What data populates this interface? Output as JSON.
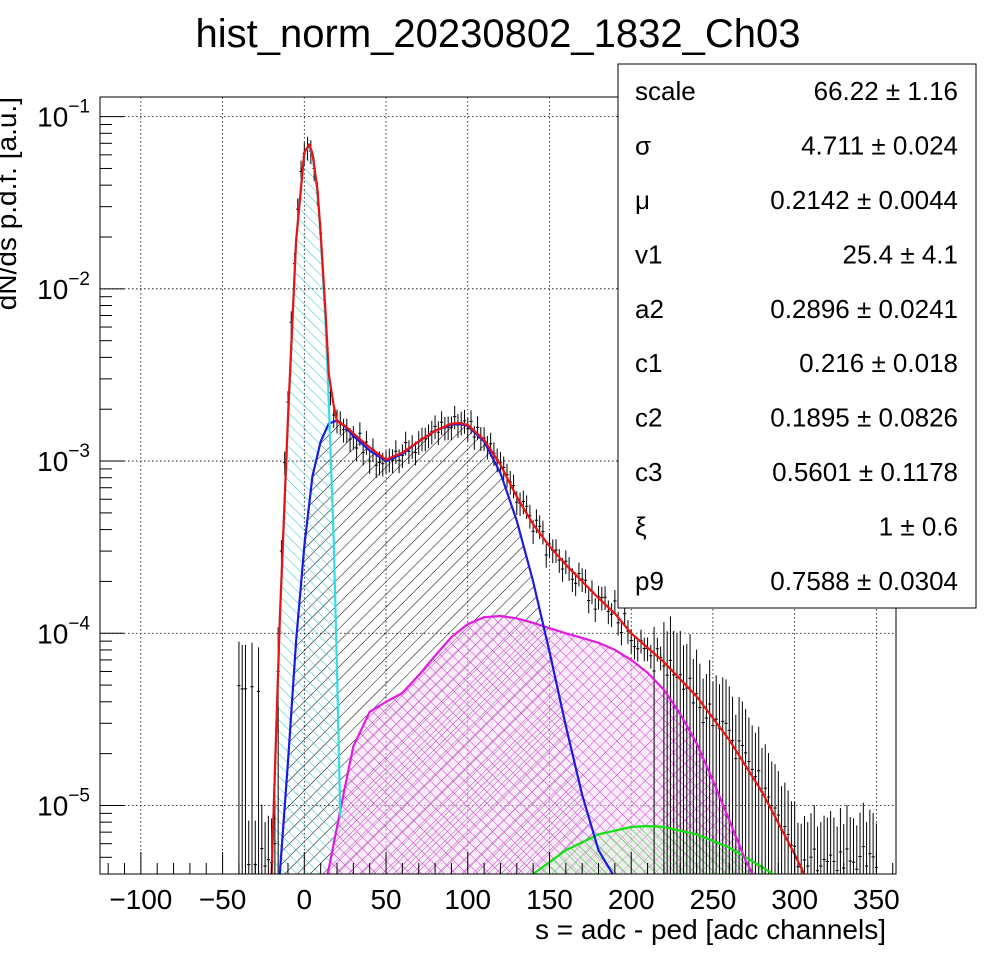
{
  "chart_data": {
    "type": "line",
    "title": "hist_norm_20230802_1832_Ch03",
    "xlabel": "s = adc - ped [adc channels]",
    "ylabel": "dN/ds p.d.f. [a.u.]",
    "xlim": [
      -125,
      362
    ],
    "ylim": [
      4e-06,
      0.13
    ],
    "yscale": "log",
    "grid": true,
    "x_ticks": [
      -100,
      -50,
      0,
      50,
      100,
      150,
      200,
      250,
      300,
      350
    ],
    "x_tick_labels": [
      "−100",
      "−50",
      "0",
      "50",
      "100",
      "150",
      "200",
      "250",
      "300",
      "350"
    ],
    "y_ticks": [
      {
        "value": 0.1,
        "base": "10",
        "exp": "−1"
      },
      {
        "value": 0.01,
        "base": "10",
        "exp": "−2"
      },
      {
        "value": 0.001,
        "base": "10",
        "exp": "−3"
      },
      {
        "value": 0.0001,
        "base": "10",
        "exp": "−4"
      },
      {
        "value": 1e-05,
        "base": "10",
        "exp": "−5"
      }
    ],
    "series": [
      {
        "color": "#ee1111",
        "x": [
          -20,
          -15,
          -10,
          -5,
          0,
          3,
          5,
          8,
          10,
          13,
          15,
          18,
          20,
          25,
          30,
          40,
          50,
          60,
          70,
          80,
          90,
          95,
          100,
          110,
          120,
          130,
          140,
          150,
          160,
          170,
          180,
          190,
          200,
          220,
          240,
          260,
          280,
          300,
          310
        ],
        "y": [
          4e-06,
          0.00012,
          0.0018,
          0.019,
          0.062,
          0.069,
          0.061,
          0.038,
          0.021,
          0.0072,
          0.0032,
          0.0021,
          0.0017,
          0.0016,
          0.00145,
          0.0012,
          0.00102,
          0.00112,
          0.0013,
          0.0015,
          0.00165,
          0.00166,
          0.00162,
          0.00133,
          0.00095,
          0.00062,
          0.00043,
          0.00032,
          0.00025,
          0.0002,
          0.00016,
          0.00013,
          0.0001,
          6.8e-05,
          4.3e-05,
          2.4e-05,
          1.2e-05,
          5.2e-06,
          3.3e-06
        ]
      },
      {
        "color": "#1a1ae6",
        "x": [
          -15,
          -10,
          -5,
          0,
          5,
          10,
          15,
          20,
          25,
          30,
          40,
          50,
          60,
          70,
          80,
          90,
          95,
          100,
          110,
          120,
          130,
          140,
          150,
          160,
          170,
          180,
          190,
          200
        ],
        "y": [
          4e-06,
          1.8e-05,
          9e-05,
          0.00032,
          0.00082,
          0.0013,
          0.00165,
          0.00172,
          0.00158,
          0.0014,
          0.00115,
          0.001,
          0.0011,
          0.0013,
          0.0015,
          0.00163,
          0.00164,
          0.0016,
          0.0013,
          0.00085,
          0.00045,
          0.0002,
          7.8e-05,
          2.9e-05,
          1.15e-05,
          5.5e-06,
          3.8e-06,
          3e-06
        ]
      },
      {
        "color": "#33dde8",
        "x": [
          -20,
          -15,
          -10,
          -5,
          0,
          3,
          5,
          8,
          10,
          13,
          15,
          18,
          20,
          22
        ],
        "y": [
          4e-06,
          0.00012,
          0.0017,
          0.019,
          0.062,
          0.067,
          0.061,
          0.037,
          0.02,
          0.0063,
          0.0022,
          0.00035,
          6.2e-05,
          8.5e-06
        ]
      },
      {
        "color": "#e01ce0",
        "x": [
          10,
          15,
          20,
          25,
          30,
          40,
          50,
          60,
          70,
          80,
          90,
          100,
          110,
          120,
          130,
          140,
          150,
          160,
          170,
          180,
          190,
          200,
          210,
          220,
          230,
          240,
          250,
          260,
          270,
          280
        ],
        "y": [
          2.8e-06,
          4.3e-06,
          7.5e-06,
          1.3e-05,
          2.2e-05,
          3.5e-05,
          4e-05,
          4.5e-05,
          5.7e-05,
          7.4e-05,
          9.5e-05,
          0.000113,
          0.000124,
          0.000126,
          0.000122,
          0.000115,
          0.000107,
          0.0001,
          9.4e-05,
          8.8e-05,
          8e-05,
          7e-05,
          5.9e-05,
          4.7e-05,
          3.4e-05,
          2.3e-05,
          1.4e-05,
          8.2e-06,
          4.8e-06,
          3.1e-06
        ]
      },
      {
        "color": "#14e014",
        "x": [
          120,
          140,
          160,
          180,
          200,
          210,
          220,
          240,
          260,
          280,
          300
        ],
        "y": [
          3.2e-06,
          4e-06,
          5.5e-06,
          6.8e-06,
          7.5e-06,
          7.6e-06,
          7.5e-06,
          6.8e-06,
          5.7e-06,
          4.4e-06,
          3.3e-06
        ]
      }
    ],
    "histogram": {
      "bin_width": 2,
      "bins": [
        [
          -40,
          4.97e-05
        ],
        [
          -38,
          4.75e-05
        ],
        [
          -36,
          4.76e-05
        ],
        [
          -34,
          4.54e-06
        ],
        [
          -32,
          4.89e-05
        ],
        [
          -30,
          4.54e-06
        ],
        [
          -28,
          4.6e-05
        ],
        [
          -26,
          5.62e-06
        ],
        [
          -24,
          4.45e-06
        ],
        [
          -22,
          4.84e-06
        ],
        [
          -20,
          4.67e-06
        ],
        [
          -18,
          6e-06
        ],
        [
          -16,
          6e-05
        ],
        [
          -14,
          0.0003
        ],
        [
          -12,
          0.00098
        ],
        [
          -10,
          0.0022
        ],
        [
          -8,
          0.0064
        ],
        [
          -6,
          0.014
        ],
        [
          -4,
          0.029
        ],
        [
          -2,
          0.048
        ],
        [
          0,
          0.061
        ],
        [
          2,
          0.066
        ],
        [
          4,
          0.063
        ],
        [
          6,
          0.05
        ],
        [
          8,
          0.036
        ],
        [
          10,
          0.021
        ],
        [
          12,
          0.01
        ],
        [
          14,
          0.0045
        ],
        [
          16,
          0.0025
        ],
        [
          18,
          0.00185
        ],
        [
          20,
          0.00172
        ],
        [
          22,
          0.00168
        ],
        [
          24,
          0.00152
        ],
        [
          26,
          0.00152
        ],
        [
          28,
          0.00134
        ],
        [
          30,
          0.00138
        ],
        [
          32,
          0.00119
        ],
        [
          34,
          0.00145
        ],
        [
          36,
          0.00112
        ],
        [
          38,
          0.00129
        ],
        [
          40,
          0.001
        ],
        [
          42,
          0.00117
        ],
        [
          44,
          0.000946
        ],
        [
          46,
          0.000981
        ],
        [
          48,
          0.000965
        ],
        [
          50,
          0.000992
        ],
        [
          52,
          0.00102
        ],
        [
          54,
          0.00101
        ],
        [
          56,
          0.00114
        ],
        [
          58,
          0.00101
        ],
        [
          60,
          0.00108
        ],
        [
          62,
          0.00128
        ],
        [
          64,
          0.00114
        ],
        [
          66,
          0.00122
        ],
        [
          68,
          0.00112
        ],
        [
          70,
          0.00129
        ],
        [
          72,
          0.00135
        ],
        [
          74,
          0.00135
        ],
        [
          76,
          0.00141
        ],
        [
          78,
          0.00148
        ],
        [
          80,
          0.00159
        ],
        [
          82,
          0.00147
        ],
        [
          84,
          0.00168
        ],
        [
          86,
          0.00156
        ],
        [
          88,
          0.00157
        ],
        [
          90,
          0.00157
        ],
        [
          92,
          0.00181
        ],
        [
          94,
          0.00162
        ],
        [
          96,
          0.00167
        ],
        [
          98,
          0.00171
        ],
        [
          100,
          0.00154
        ],
        [
          102,
          0.0017
        ],
        [
          104,
          0.00138
        ],
        [
          106,
          0.00157
        ],
        [
          108,
          0.00136
        ],
        [
          110,
          0.00136
        ],
        [
          112,
          0.00121
        ],
        [
          114,
          0.00126
        ],
        [
          116,
          0.00111
        ],
        [
          118,
          0.00102
        ],
        [
          120,
          0.000976
        ],
        [
          122,
          0.000918
        ],
        [
          124,
          0.000833
        ],
        [
          126,
          0.000756
        ],
        [
          128,
          0.000721
        ],
        [
          130,
          0.000577
        ],
        [
          132,
          0.000568
        ],
        [
          134,
          0.000582
        ],
        [
          136,
          0.000546
        ],
        [
          138,
          0.000481
        ],
        [
          140,
          0.000391
        ],
        [
          142,
          0.000453
        ],
        [
          144,
          0.000418
        ],
        [
          146,
          0.000389
        ],
        [
          148,
          0.000285
        ],
        [
          150,
          0.00033
        ],
        [
          152,
          0.000303
        ],
        [
          154,
          0.000304
        ],
        [
          156,
          0.000266
        ],
        [
          158,
          0.000236
        ],
        [
          160,
          0.000262
        ],
        [
          162,
          0.000239
        ],
        [
          164,
          0.000206
        ],
        [
          166,
          0.000195
        ],
        [
          168,
          0.000222
        ],
        [
          170,
          0.000206
        ],
        [
          172,
          0.000203
        ],
        [
          174,
          0.000155
        ],
        [
          176,
          0.000175
        ],
        [
          178,
          0.000138
        ],
        [
          180,
          0.000163
        ],
        [
          182,
          0.000161
        ],
        [
          184,
          0.000162
        ],
        [
          186,
          0.000134
        ],
        [
          188,
          0.000129
        ],
        [
          190,
          0.000154
        ],
        [
          192,
          0.000115
        ],
        [
          194,
          0.000101
        ],
        [
          196,
          0.00013
        ],
        [
          198,
          0.000103
        ],
        [
          200,
          9.08e-05
        ],
        [
          202,
          8.36e-05
        ],
        [
          204,
          8.13e-05
        ],
        [
          206,
          9.06e-05
        ],
        [
          208,
          8.15e-05
        ],
        [
          210,
          8.16e-05
        ],
        [
          212,
          7.4e-05
        ],
        [
          214,
          6.04e-05
        ],
        [
          216,
          8.13e-05
        ],
        [
          218,
          7.23e-05
        ],
        [
          220,
          6.45e-05
        ],
        [
          222,
          5.71e-05
        ],
        [
          224,
          6.96e-05
        ],
        [
          226,
          5.73e-05
        ],
        [
          228,
          5.55e-05
        ],
        [
          230,
          5.74e-05
        ],
        [
          232,
          4.73e-05
        ],
        [
          234,
          4.81e-05
        ],
        [
          236,
          5.48e-05
        ],
        [
          238,
          3.94e-05
        ],
        [
          240,
          4.46e-05
        ],
        [
          242,
          3.7e-05
        ],
        [
          244,
          3.03e-05
        ],
        [
          246,
          3.22e-05
        ],
        [
          248,
          3.88e-05
        ],
        [
          250,
          2.91e-05
        ],
        [
          252,
          3.17e-05
        ],
        [
          254,
          2.81e-05
        ],
        [
          256,
          3.08e-05
        ],
        [
          258,
          3e-05
        ],
        [
          260,
          2.73e-05
        ],
        [
          262,
          2.38e-05
        ],
        [
          264,
          1.87e-05
        ],
        [
          266,
          2.37e-05
        ],
        [
          268,
          2.23e-05
        ],
        [
          270,
          2.02e-05
        ],
        [
          272,
          1.8e-05
        ],
        [
          274,
          1.62e-05
        ],
        [
          276,
          1.47e-05
        ],
        [
          278,
          1.59e-05
        ],
        [
          280,
          1.2e-05
        ],
        [
          282,
          1.26e-05
        ],
        [
          284,
          1.12e-05
        ],
        [
          286,
          9.99e-06
        ],
        [
          288,
          9.66e-06
        ],
        [
          290,
          8.8e-06
        ],
        [
          292,
          7.19e-06
        ],
        [
          294,
          7.55e-06
        ],
        [
          296,
          6.79e-06
        ],
        [
          298,
          5.88e-06
        ],
        [
          300,
          5.8e-06
        ],
        [
          302,
          4.41e-06
        ],
        [
          304,
          4.35e-06
        ],
        [
          306,
          4.83e-06
        ],
        [
          308,
          4.45e-06
        ],
        [
          310,
          5.01e-06
        ],
        [
          312,
          5.58e-06
        ],
        [
          314,
          4.18e-06
        ],
        [
          316,
          4.45e-06
        ],
        [
          318,
          4.85e-06
        ],
        [
          320,
          4.73e-06
        ],
        [
          322,
          5.15e-06
        ],
        [
          324,
          4.73e-06
        ],
        [
          326,
          4.19e-06
        ],
        [
          328,
          5.37e-06
        ],
        [
          330,
          4.33e-06
        ],
        [
          332,
          5.59e-06
        ],
        [
          334,
          4.76e-06
        ],
        [
          336,
          4.68e-06
        ],
        [
          338,
          4.26e-06
        ],
        [
          340,
          5.05e-06
        ],
        [
          342,
          5.77e-06
        ],
        [
          344,
          4.45e-06
        ],
        [
          346,
          5.25e-06
        ],
        [
          348,
          5.03e-06
        ],
        [
          350,
          4.37e-06
        ]
      ],
      "error_rel": 0.45
    },
    "stats_box": {
      "rows": [
        {
          "name": "scale",
          "value": "66.22",
          "error": "1.16"
        },
        {
          "name": "σ",
          "value": "4.711",
          "error": "0.024"
        },
        {
          "name": "μ",
          "value": "0.2142",
          "error": "0.0044"
        },
        {
          "name": "v1",
          "value": "25.4",
          "error": "4.1"
        },
        {
          "name": "a2",
          "value": "0.2896",
          "error": "0.0241"
        },
        {
          "name": "c1",
          "value": "0.216",
          "error": "0.018"
        },
        {
          "name": "c2",
          "value": "0.1895",
          "error": "0.0826"
        },
        {
          "name": "c3",
          "value": "0.5601",
          "error": "0.1178"
        },
        {
          "name": "ξ",
          "value": "1",
          "error": "0.6"
        },
        {
          "name": "p9",
          "value": "0.7588",
          "error": "0.0304"
        }
      ]
    }
  }
}
